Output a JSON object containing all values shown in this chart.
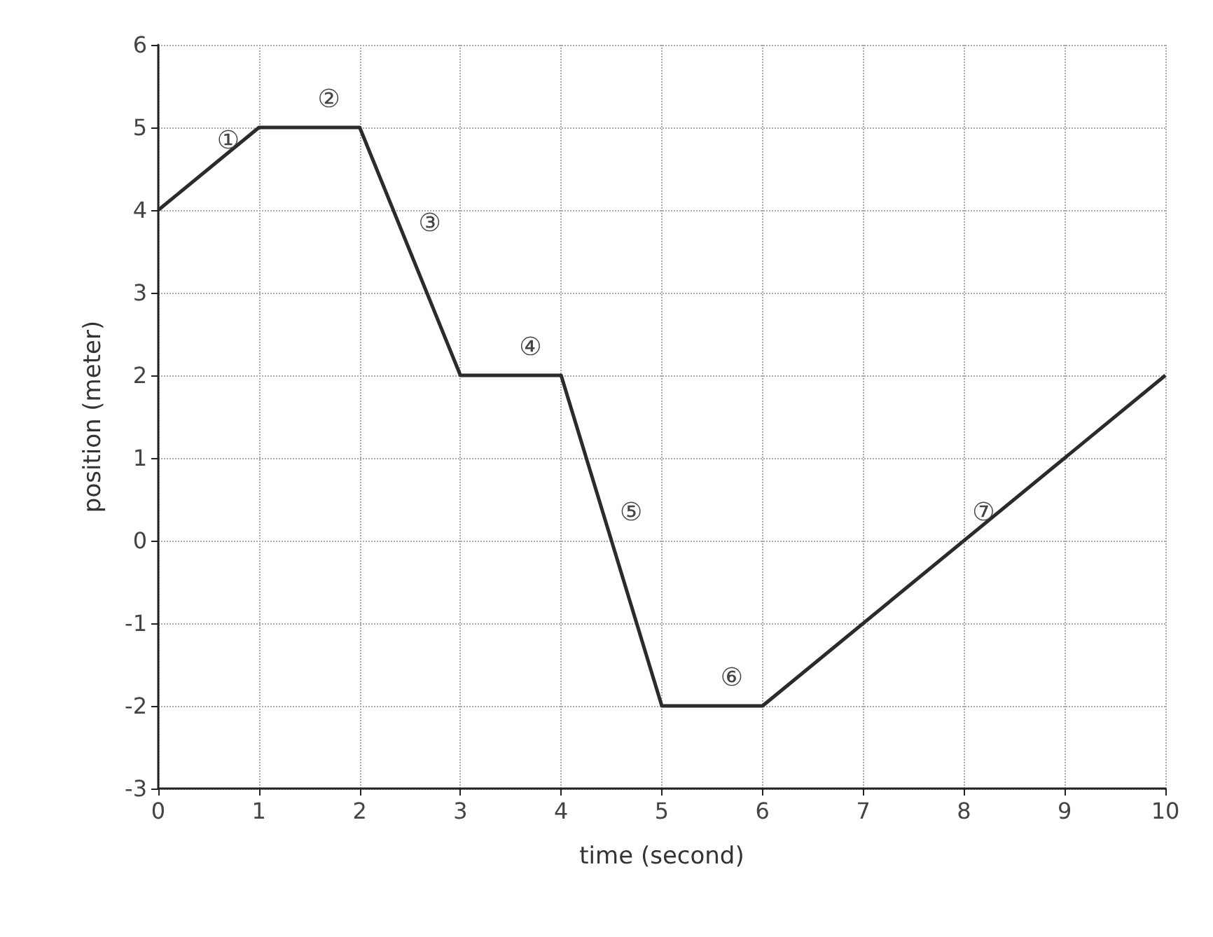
{
  "chart_data": {
    "type": "line",
    "xlabel": "time (second)",
    "ylabel": "position (meter)",
    "x": [
      0,
      1,
      2,
      3,
      4,
      5,
      6,
      10
    ],
    "series": [
      {
        "color": "#2b2b2b",
        "values": [
          4,
          5,
          5,
          2,
          2,
          -2,
          -2,
          2
        ]
      }
    ],
    "xlim": [
      0,
      10
    ],
    "xticks": [
      0,
      1,
      2,
      3,
      4,
      5,
      6,
      7,
      8,
      9,
      10
    ],
    "ylim": [
      -3,
      6
    ],
    "yticks": [
      -3,
      -2,
      -1,
      0,
      1,
      2,
      3,
      4,
      5,
      6
    ],
    "grid": true,
    "marker": "none",
    "line_style": "solid",
    "annotations": [
      "①",
      "②",
      "③",
      "④",
      "⑤",
      "⑥",
      "⑦"
    ]
  }
}
